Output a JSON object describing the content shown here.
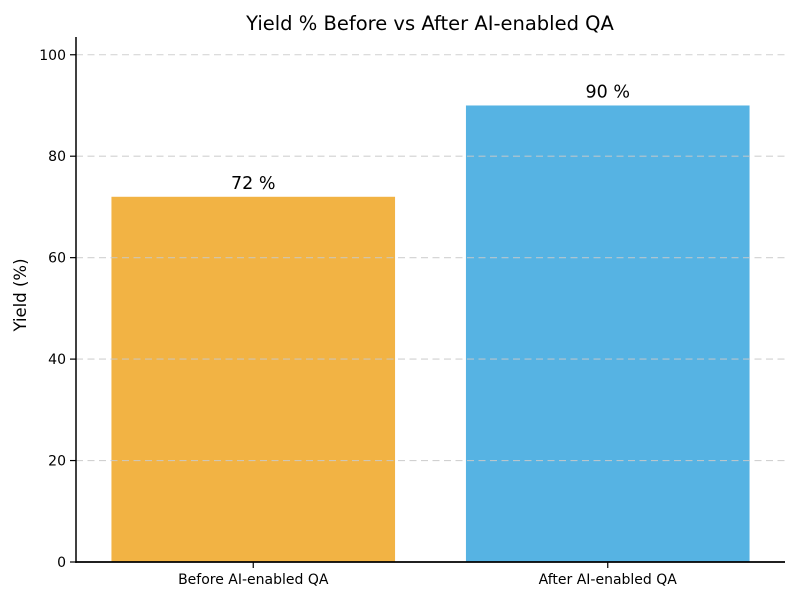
{
  "figure": {
    "background": "#ffffff"
  },
  "chart_data": {
    "type": "bar",
    "title": "Yield % Before vs After AI-enabled QA",
    "xlabel": "",
    "ylabel": "Yield (%)",
    "categories": [
      "Before AI-enabled QA",
      "After AI-enabled QA"
    ],
    "values": [
      72,
      90
    ],
    "value_labels": [
      "72 %",
      "90 %"
    ],
    "bar_colors": [
      "#F2B344",
      "#56B3E3"
    ],
    "ylim": [
      0,
      103.5
    ],
    "yticks": [
      0,
      20,
      40,
      60,
      80,
      100
    ],
    "grid": {
      "horizontal": true,
      "style": "dashed",
      "color": "#c9c9c9",
      "drawn_over_bars": true
    },
    "legend": "none",
    "text_color": "#000000",
    "spine_color": "#000000"
  }
}
